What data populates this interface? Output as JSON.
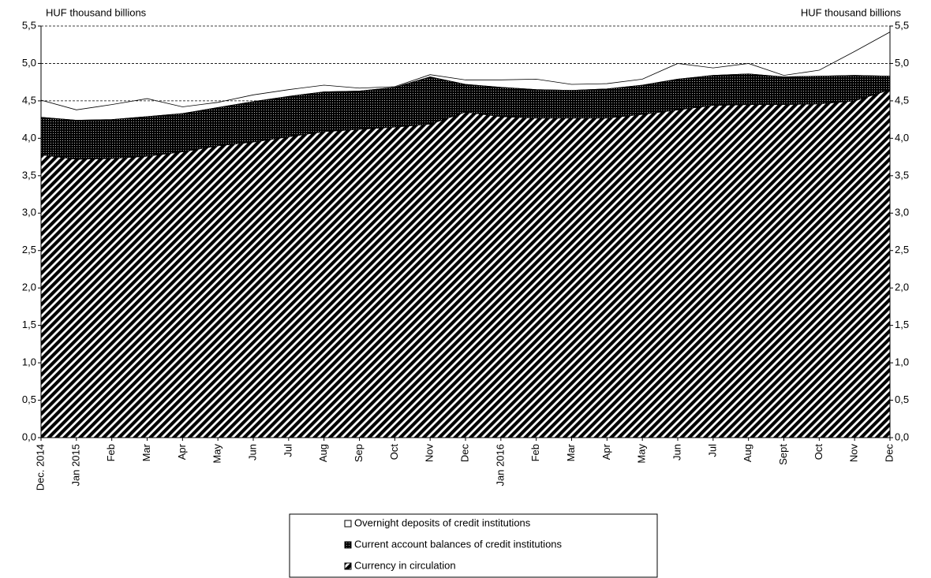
{
  "chart_data": {
    "type": "stacked-area",
    "ylabel": "HUF thousand billions",
    "y2label": "HUF thousand billions",
    "categories": [
      "Dec. 2014",
      "Jan 2015",
      "Feb",
      "Mar",
      "Apr",
      "May",
      "Jun",
      "Jul",
      "Aug",
      "Sep",
      "Oct",
      "Nov",
      "Dec",
      "Jan 2016",
      "Feb",
      "Mar",
      "Apr",
      "May",
      "Jun",
      "Jul",
      "Aug",
      "Sept",
      "Oct",
      "Nov",
      "Dec"
    ],
    "series": [
      {
        "name": "Currency in circulation",
        "color": "#000000",
        "pattern": "hatch",
        "values": [
          3.78,
          3.72,
          3.73,
          3.76,
          3.82,
          3.9,
          3.95,
          4.02,
          4.09,
          4.12,
          4.15,
          4.19,
          4.35,
          4.29,
          4.27,
          4.27,
          4.27,
          4.32,
          4.38,
          4.44,
          4.45,
          4.45,
          4.46,
          4.5,
          4.65
        ]
      },
      {
        "name": "Current account balances of credit institutions",
        "color": "#000000",
        "pattern": "dots",
        "values": [
          0.5,
          0.52,
          0.52,
          0.53,
          0.51,
          0.51,
          0.54,
          0.54,
          0.53,
          0.51,
          0.53,
          0.63,
          0.37,
          0.39,
          0.38,
          0.37,
          0.39,
          0.39,
          0.41,
          0.4,
          0.41,
          0.37,
          0.37,
          0.34,
          0.18
        ]
      },
      {
        "name": "Overnight deposits of credit institutions",
        "color": "#000000",
        "pattern": "none",
        "values": [
          0.23,
          0.14,
          0.2,
          0.24,
          0.09,
          0.07,
          0.09,
          0.09,
          0.09,
          0.04,
          0.01,
          0.03,
          0.06,
          0.1,
          0.14,
          0.08,
          0.07,
          0.08,
          0.21,
          0.1,
          0.14,
          0.02,
          0.08,
          0.32,
          0.59
        ]
      }
    ],
    "ylim": [
      0,
      5.5
    ],
    "yticks": [
      {
        "value": 0,
        "label": "0,0"
      },
      {
        "value": 0.5,
        "label": "0,5"
      },
      {
        "value": 1,
        "label": "1,0"
      },
      {
        "value": 1.5,
        "label": "1,5"
      },
      {
        "value": 2,
        "label": "2,0"
      },
      {
        "value": 2.5,
        "label": "2,5"
      },
      {
        "value": 3,
        "label": "3,0"
      },
      {
        "value": 3.5,
        "label": "3,5"
      },
      {
        "value": 4,
        "label": "4,0"
      },
      {
        "value": 4.5,
        "label": "4,5"
      },
      {
        "value": 5,
        "label": "5,0"
      },
      {
        "value": 5.5,
        "label": "5,5"
      }
    ],
    "y2lim": [
      0,
      5.5
    ],
    "y2ticks": [
      {
        "value": 0,
        "label": "0,0"
      },
      {
        "value": 0.5,
        "label": "0,5"
      },
      {
        "value": 1,
        "label": "1,0"
      },
      {
        "value": 1.5,
        "label": "1,5"
      },
      {
        "value": 2,
        "label": "2,0"
      },
      {
        "value": 2.5,
        "label": "2,5"
      },
      {
        "value": 3,
        "label": "3,0"
      },
      {
        "value": 3.5,
        "label": "3,5"
      },
      {
        "value": 4,
        "label": "4,0"
      },
      {
        "value": 4.5,
        "label": "4,5"
      },
      {
        "value": 5,
        "label": "5,0"
      },
      {
        "value": 5.5,
        "label": "5,5"
      }
    ],
    "grid": true,
    "legend": "bottom"
  }
}
